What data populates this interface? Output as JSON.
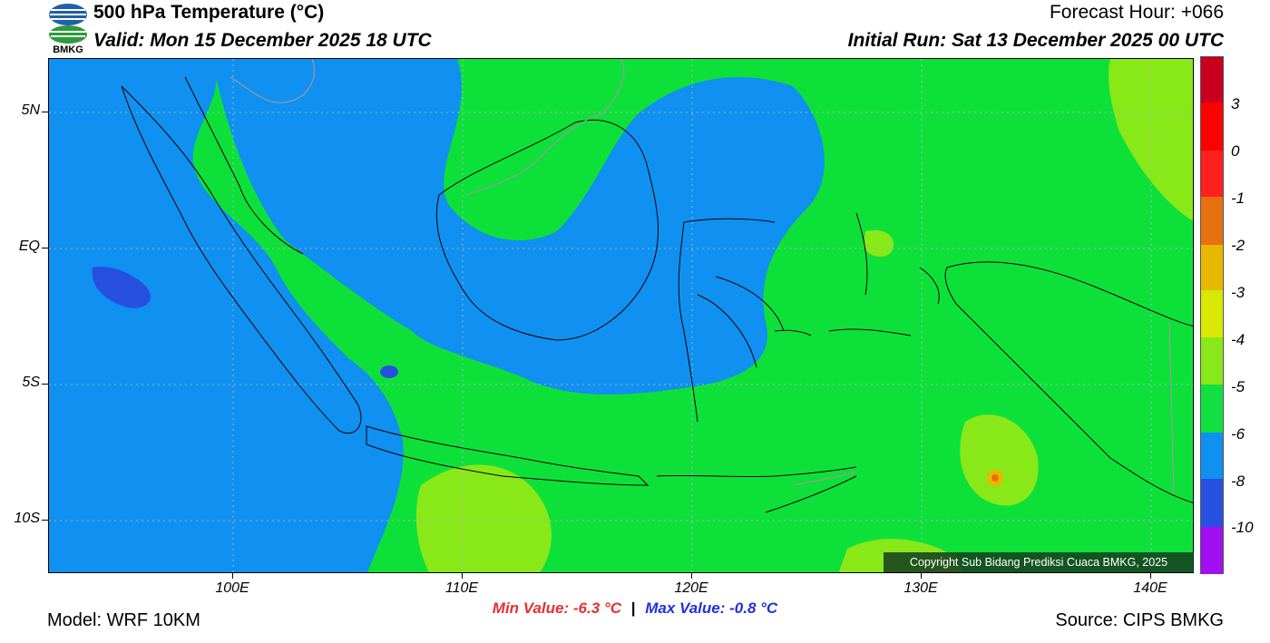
{
  "header": {
    "title": "500 hPa Temperature (°C)",
    "valid": "Valid: Mon 15 December 2025 18 UTC",
    "forecast_hour": "Forecast Hour: +066",
    "initial_run": "Initial Run: Sat 13 December 2025 00 UTC"
  },
  "logo": {
    "text": "BMKG"
  },
  "map": {
    "lat_labels": [
      "5N",
      "EQ",
      "5S",
      "10S"
    ],
    "lon_labels": [
      "100E",
      "110E",
      "120E",
      "130E",
      "140E"
    ],
    "copyright": "Copyright Sub Bidang Prediksi Cuaca BMKG, 2025"
  },
  "colorbar": {
    "labels": [
      "3",
      "0",
      "-1",
      "-2",
      "-3",
      "-4",
      "-5",
      "-6",
      "-8",
      "-10"
    ],
    "colors": [
      "#c8001e",
      "#ff0000",
      "#ff2020",
      "#e87010",
      "#e8b800",
      "#d8e800",
      "#88e818",
      "#10e040",
      "#1090f0",
      "#2850e0",
      "#a010f0",
      "#a00060"
    ]
  },
  "stats": {
    "min_value": "Min Value: -6.3 °C",
    "separator": "|",
    "max_value": "Max Value: -0.8 °C"
  },
  "footer": {
    "model": "Model: WRF 10KM",
    "source": "Source: CIPS BMKG"
  }
}
